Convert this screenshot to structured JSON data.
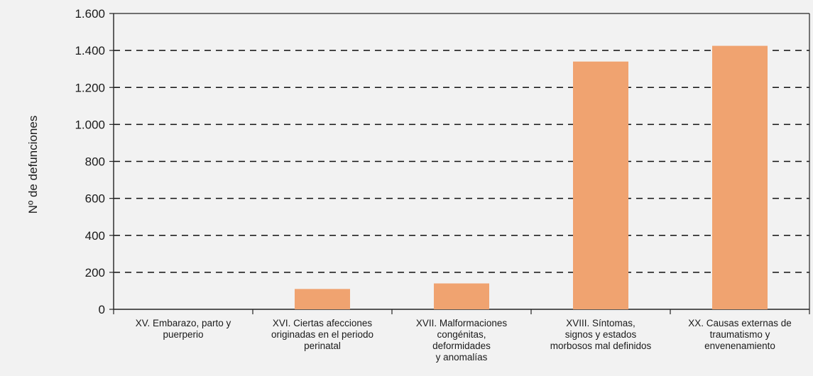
{
  "chart_data": {
    "type": "bar",
    "title": "",
    "xlabel": "",
    "ylabel": "Nº de defunciones",
    "ylim": [
      0,
      1600
    ],
    "yticks": [
      0,
      200,
      400,
      600,
      800,
      1000,
      1200,
      1400,
      1600
    ],
    "ytick_labels": [
      "0",
      "200",
      "400",
      "600",
      "800",
      "1.000",
      "1.200",
      "1.400",
      "1.600"
    ],
    "grid": "horizontal dashed",
    "categories": [
      [
        "XV. Embarazo, parto y",
        "puerperio"
      ],
      [
        "XVI. Ciertas afecciones",
        "originadas en el periodo",
        "perinatal"
      ],
      [
        "XVII. Malformaciones",
        "congénitas,",
        "deformidades",
        "y anomalías"
      ],
      [
        "XVIII. Síntomas,",
        "signos y estados",
        "morbosos mal definidos"
      ],
      [
        "XX. Causas externas de",
        "traumatismo y",
        "envenenamiento"
      ]
    ],
    "values": [
      0,
      110,
      140,
      1340,
      1425
    ],
    "colors": {
      "bar": "#f0a370",
      "background": "#f2f2f2",
      "grid": "#111111",
      "axis": "#222222"
    }
  }
}
